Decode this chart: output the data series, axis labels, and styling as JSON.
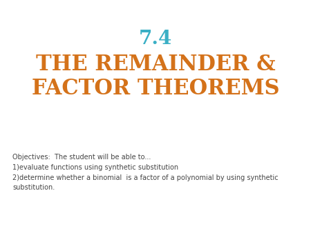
{
  "background_color": "#ffffff",
  "number_text": "7.4",
  "number_color": "#3aafc5",
  "title_line1": "THE REMAINDER &",
  "title_line2": "FACTOR THEOREMS",
  "title_color": "#d4721a",
  "objectives_text": "Objectives:  The student will be able to...\n1)evaluate functions using synthetic substitution\n2)determine whether a binomial  is a factor of a polynomial by using synthetic\nsubstitution.",
  "objectives_color": "#444444",
  "number_fontsize": 20,
  "title_fontsize": 22,
  "objectives_fontsize": 7.0
}
